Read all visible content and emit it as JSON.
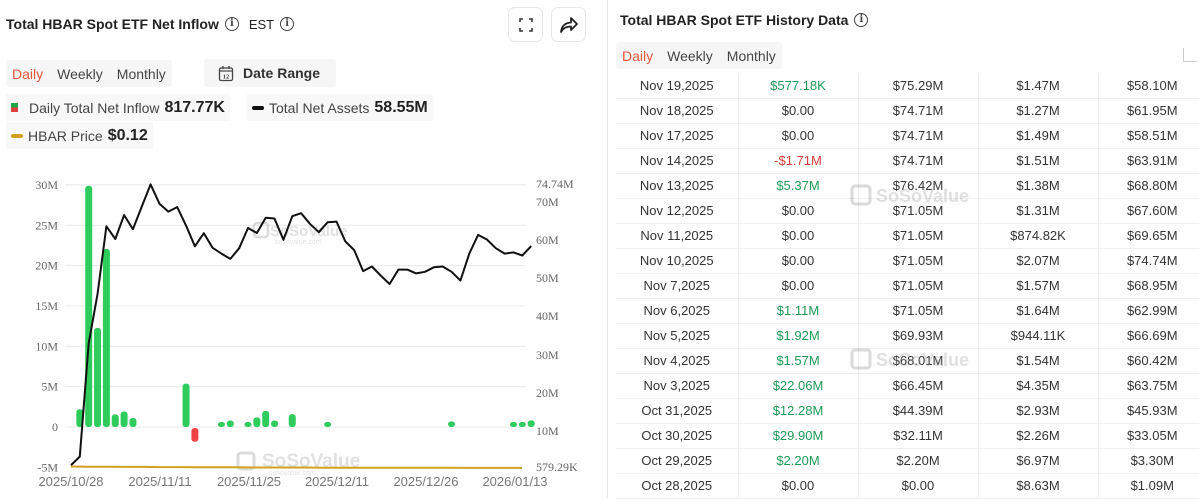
{
  "left_panel": {
    "title": "Total HBAR Spot ETF Net Inflow",
    "timezone": "EST",
    "tabs": [
      "Daily",
      "Weekly",
      "Monthly"
    ],
    "active_tab": "Daily",
    "date_range_label": "Date Range",
    "date_range_icon_num": "12",
    "legend": {
      "inflow_label": "Daily Total Net Inflow",
      "inflow_value": "817.77K",
      "assets_label": "Total Net Assets",
      "assets_value": "58.55M",
      "price_label": "HBAR Price",
      "price_value": "$0.12"
    },
    "watermark": "SoSoValue",
    "watermark_sub": "sosovalue.com"
  },
  "right_panel": {
    "title": "Total HBAR Spot ETF History Data",
    "tabs": [
      "Daily",
      "Weekly",
      "Monthly"
    ],
    "active_tab": "Daily",
    "rows": [
      {
        "date": "Nov 19,2025",
        "inflow": "$577.18K",
        "sign": "pos",
        "cum": "$75.29M",
        "value": "$1.47M",
        "assets": "$58.10M"
      },
      {
        "date": "Nov 18,2025",
        "inflow": "$0.00",
        "sign": "zero",
        "cum": "$74.71M",
        "value": "$1.27M",
        "assets": "$61.95M"
      },
      {
        "date": "Nov 17,2025",
        "inflow": "$0.00",
        "sign": "zero",
        "cum": "$74.71M",
        "value": "$1.49M",
        "assets": "$58.51M"
      },
      {
        "date": "Nov 14,2025",
        "inflow": "-$1.71M",
        "sign": "neg",
        "cum": "$74.71M",
        "value": "$1.51M",
        "assets": "$63.91M"
      },
      {
        "date": "Nov 13,2025",
        "inflow": "$5.37M",
        "sign": "pos",
        "cum": "$76.42M",
        "value": "$1.38M",
        "assets": "$68.80M"
      },
      {
        "date": "Nov 12,2025",
        "inflow": "$0.00",
        "sign": "zero",
        "cum": "$71.05M",
        "value": "$1.31M",
        "assets": "$67.60M"
      },
      {
        "date": "Nov 11,2025",
        "inflow": "$0.00",
        "sign": "zero",
        "cum": "$71.05M",
        "value": "$874.82K",
        "assets": "$69.65M"
      },
      {
        "date": "Nov 10,2025",
        "inflow": "$0.00",
        "sign": "zero",
        "cum": "$71.05M",
        "value": "$2.07M",
        "assets": "$74.74M"
      },
      {
        "date": "Nov 7,2025",
        "inflow": "$0.00",
        "sign": "zero",
        "cum": "$71.05M",
        "value": "$1.57M",
        "assets": "$68.95M"
      },
      {
        "date": "Nov 6,2025",
        "inflow": "$1.11M",
        "sign": "pos",
        "cum": "$71.05M",
        "value": "$1.64M",
        "assets": "$62.99M"
      },
      {
        "date": "Nov 5,2025",
        "inflow": "$1.92M",
        "sign": "pos",
        "cum": "$69.93M",
        "value": "$944.11K",
        "assets": "$66.69M"
      },
      {
        "date": "Nov 4,2025",
        "inflow": "$1.57M",
        "sign": "pos",
        "cum": "$68.01M",
        "value": "$1.54M",
        "assets": "$60.42M"
      },
      {
        "date": "Nov 3,2025",
        "inflow": "$22.06M",
        "sign": "pos",
        "cum": "$66.45M",
        "value": "$4.35M",
        "assets": "$63.75M"
      },
      {
        "date": "Oct 31,2025",
        "inflow": "$12.28M",
        "sign": "pos",
        "cum": "$44.39M",
        "value": "$2.93M",
        "assets": "$45.93M"
      },
      {
        "date": "Oct 30,2025",
        "inflow": "$29.90M",
        "sign": "pos",
        "cum": "$32.11M",
        "value": "$2.26M",
        "assets": "$33.05M"
      },
      {
        "date": "Oct 29,2025",
        "inflow": "$2.20M",
        "sign": "pos",
        "cum": "$2.20M",
        "value": "$6.97M",
        "assets": "$3.30M"
      },
      {
        "date": "Oct 28,2025",
        "inflow": "$0.00",
        "sign": "zero",
        "cum": "$0.00",
        "value": "$8.63M",
        "assets": "$1.09M"
      }
    ]
  },
  "colors": {
    "inflow_pos": "#2ecc5a",
    "inflow_neg": "#f04444",
    "assets_line": "#111111",
    "price_line": "#d4a020",
    "accent": "#e2563a"
  },
  "chart_data": {
    "type": "bar",
    "title": "Total HBAR Spot ETF Net Inflow",
    "xlabel": "",
    "ylabel": "",
    "x_ticks": [
      "2025/10/28",
      "2025/11/11",
      "2025/11/25",
      "2025/12/11",
      "2025/12/26",
      "2026/01/13"
    ],
    "left_axis": {
      "ticks": [
        "30M",
        "25M",
        "20M",
        "15M",
        "10M",
        "5M",
        "0",
        "-5M"
      ],
      "ylim": [
        -5000000,
        30000000
      ]
    },
    "right_axis": {
      "ticks": [
        "74.74M",
        "70M",
        "60M",
        "50M",
        "40M",
        "30M",
        "20M",
        "10M",
        "579.29K"
      ],
      "ylim": [
        579290,
        74740000
      ]
    },
    "grid": true,
    "legend_position": "top",
    "series": [
      {
        "name": "Daily Total Net Inflow",
        "type": "bar",
        "axis": "left",
        "values_m": [
          0,
          2.2,
          29.9,
          12.28,
          22.06,
          1.57,
          1.92,
          1.11,
          0,
          0,
          0,
          0,
          0,
          5.37,
          -1.71,
          0,
          0,
          0.58,
          0.8,
          0,
          0.4,
          1.2,
          2.0,
          0.8,
          0,
          1.6,
          0,
          0,
          0,
          0.6,
          0,
          0,
          0,
          0,
          0,
          0,
          0,
          0,
          0,
          0,
          0,
          0,
          0,
          0.7,
          0,
          0,
          0,
          0,
          0,
          0,
          0.6,
          0.2,
          0.82
        ]
      },
      {
        "name": "Total Net Assets",
        "type": "line",
        "axis": "right",
        "values_m": [
          1.09,
          3.3,
          33.05,
          45.93,
          63.75,
          60.42,
          66.69,
          62.99,
          68.95,
          74.74,
          69.65,
          67.6,
          68.8,
          63.91,
          58.51,
          61.95,
          58.1,
          56.6,
          55.2,
          58.0,
          63.3,
          62.0,
          66.0,
          65.8,
          60.2,
          66.4,
          67.2,
          64.4,
          62.2,
          64.8,
          65.0,
          59.8,
          57.5,
          52.0,
          53.2,
          50.8,
          48.6,
          52.4,
          52.4,
          51.4,
          51.8,
          53.0,
          53.2,
          51.8,
          49.5,
          56.6,
          61.5,
          60.3,
          58.0,
          56.6,
          56.9,
          56.1,
          58.55
        ]
      },
      {
        "name": "HBAR Price",
        "type": "line",
        "axis": "right",
        "values": [
          0.19,
          0.18,
          0.18,
          0.17,
          0.17,
          0.16,
          0.16,
          0.15,
          0.15,
          0.15,
          0.14,
          0.14,
          0.14,
          0.14,
          0.13,
          0.13,
          0.13,
          0.13,
          0.13,
          0.13,
          0.13,
          0.13,
          0.12,
          0.12,
          0.12,
          0.12
        ]
      }
    ]
  }
}
